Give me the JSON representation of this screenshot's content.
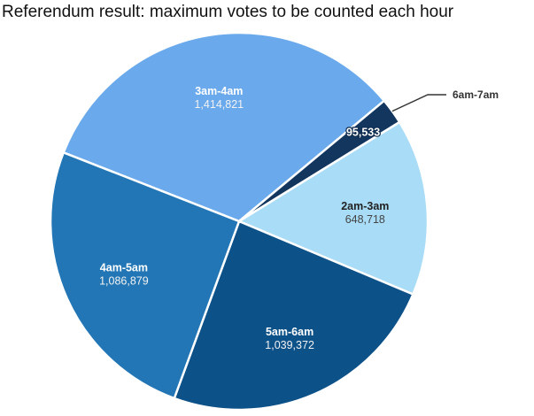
{
  "chart_data": {
    "type": "pie",
    "title": "Referendum result: maximum votes to be counted each hour",
    "legend_position": "none",
    "start_angle_deg": -68.6,
    "direction": "clockwise",
    "slices": [
      {
        "label": "3am-4am",
        "value": 1414821,
        "display_value": "1,414,821",
        "color": "#69A9EC",
        "label_color": "#FFFFFF",
        "value_color": "#F2F2F2",
        "label_placement": "inside"
      },
      {
        "label": "6am-7am",
        "value": 95533,
        "display_value": "95,533",
        "color": "#13365E",
        "label_color": "#333333",
        "value_color": "#FFFFFF",
        "label_placement": "callout"
      },
      {
        "label": "2am-3am",
        "value": 648718,
        "display_value": "648,718",
        "color": "#A9DCF6",
        "label_color": "#222222",
        "value_color": "#444444",
        "label_placement": "inside"
      },
      {
        "label": "5am-6am",
        "value": 1039372,
        "display_value": "1,039,372",
        "color": "#0D5189",
        "label_color": "#FFFFFF",
        "value_color": "#F2F2F2",
        "label_placement": "inside"
      },
      {
        "label": "4am-5am",
        "value": 1086879,
        "display_value": "1,086,879",
        "color": "#2276B5",
        "label_color": "#FFFFFF",
        "value_color": "#F2F2F2",
        "label_placement": "inside"
      }
    ]
  }
}
